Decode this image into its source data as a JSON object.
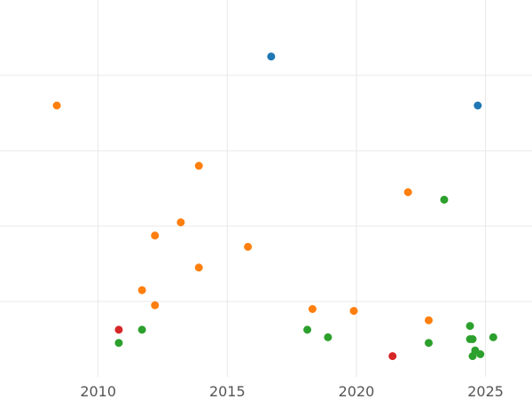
{
  "chart_data": {
    "type": "scatter",
    "title": "",
    "xlabel": "",
    "ylabel": "",
    "xlim": [
      2006.2,
      2026.8
    ],
    "xticks": [
      2010,
      2015,
      2020,
      2025
    ],
    "xtick_labels": [
      "2010",
      "2015",
      "2020",
      "2025"
    ],
    "grid": true,
    "legend": "none",
    "y_tick_labels_shown": false,
    "series": [
      {
        "color": "#1f77b4",
        "points": [
          {
            "x": 2016.7,
            "y": 0.85
          },
          {
            "x": 2024.7,
            "y": 0.72
          }
        ]
      },
      {
        "color": "#ff7f0e",
        "points": [
          {
            "x": 2008.4,
            "y": 0.72
          },
          {
            "x": 2013.9,
            "y": 0.56
          },
          {
            "x": 2022.0,
            "y": 0.49
          },
          {
            "x": 2013.2,
            "y": 0.41
          },
          {
            "x": 2012.2,
            "y": 0.375
          },
          {
            "x": 2015.8,
            "y": 0.345
          },
          {
            "x": 2013.9,
            "y": 0.29
          },
          {
            "x": 2011.7,
            "y": 0.23
          },
          {
            "x": 2012.2,
            "y": 0.19
          },
          {
            "x": 2018.3,
            "y": 0.18
          },
          {
            "x": 2019.9,
            "y": 0.175
          },
          {
            "x": 2022.8,
            "y": 0.15
          }
        ]
      },
      {
        "color": "#2ca02c",
        "points": [
          {
            "x": 2023.4,
            "y": 0.47
          },
          {
            "x": 2011.7,
            "y": 0.125
          },
          {
            "x": 2010.8,
            "y": 0.09
          },
          {
            "x": 2018.1,
            "y": 0.125
          },
          {
            "x": 2018.9,
            "y": 0.105
          },
          {
            "x": 2022.8,
            "y": 0.09
          },
          {
            "x": 2024.4,
            "y": 0.135
          },
          {
            "x": 2024.4,
            "y": 0.1
          },
          {
            "x": 2024.5,
            "y": 0.1
          },
          {
            "x": 2025.3,
            "y": 0.105
          },
          {
            "x": 2024.6,
            "y": 0.07
          },
          {
            "x": 2024.8,
            "y": 0.06
          },
          {
            "x": 2024.5,
            "y": 0.055
          }
        ]
      },
      {
        "color": "#d62728",
        "points": [
          {
            "x": 2010.8,
            "y": 0.125
          },
          {
            "x": 2021.4,
            "y": 0.055
          }
        ]
      }
    ]
  }
}
